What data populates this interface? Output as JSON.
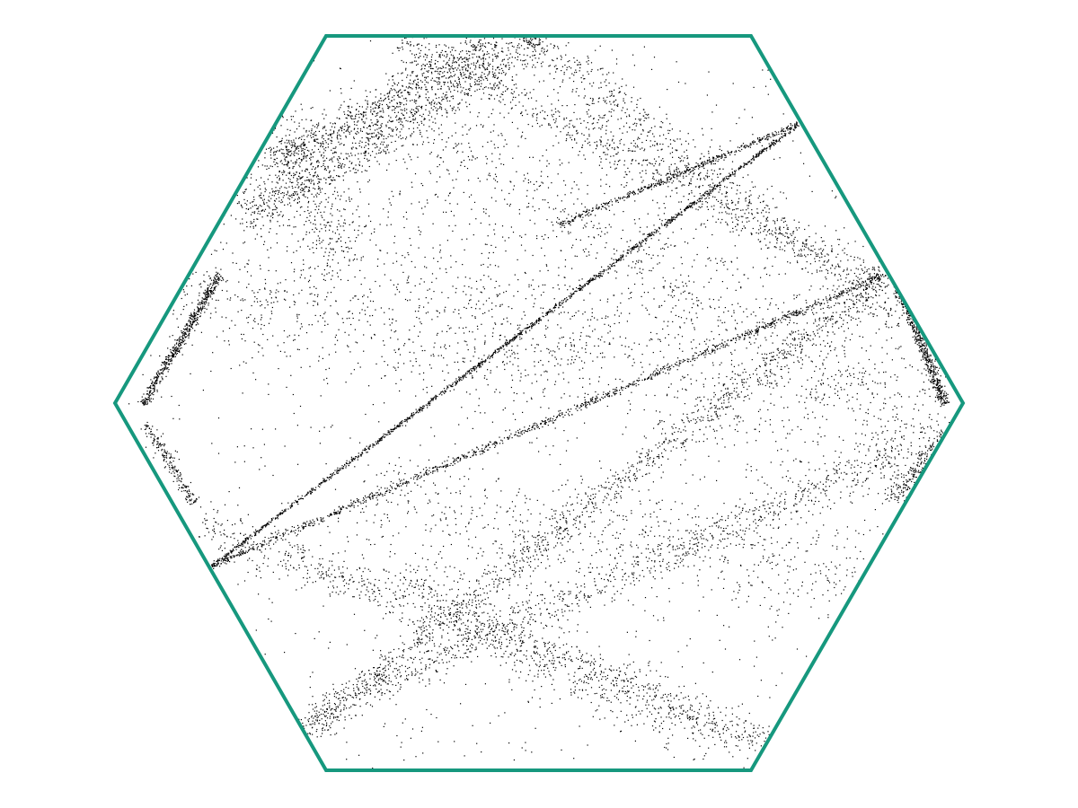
{
  "figure": {
    "type": "hexagonal-billiard-orbit",
    "boundary_shape": "regular hexagon",
    "boundary_color": "#16987e",
    "point_color": "#000000",
    "background_color": "#ffffff",
    "title": "",
    "labels": []
  }
}
